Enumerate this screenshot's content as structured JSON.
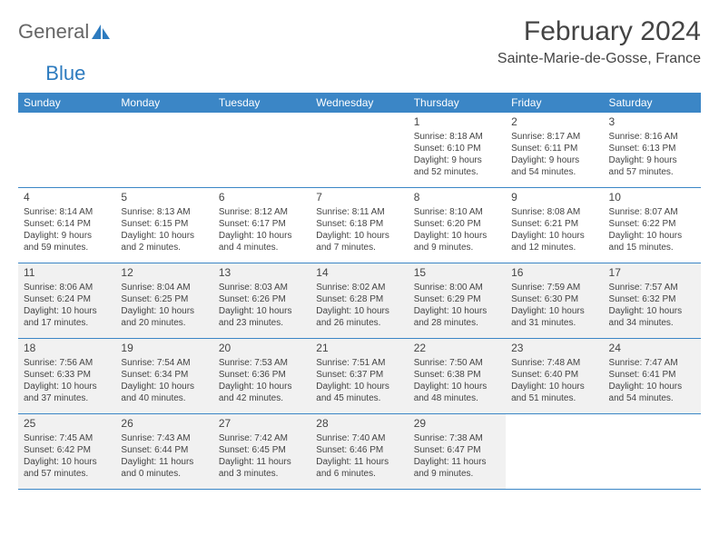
{
  "logo": {
    "text1": "General",
    "text2": "Blue"
  },
  "title": "February 2024",
  "location": "Sainte-Marie-de-Gosse, France",
  "colors": {
    "header_bg": "#3b86c6",
    "header_text": "#ffffff",
    "shaded_bg": "#f1f1f1",
    "text": "#444444",
    "logo_gray": "#666666",
    "logo_blue": "#2d7bbf",
    "border": "#3b86c6"
  },
  "weekdays": [
    "Sunday",
    "Monday",
    "Tuesday",
    "Wednesday",
    "Thursday",
    "Friday",
    "Saturday"
  ],
  "weeks": [
    [
      {
        "day": "",
        "sunrise": "",
        "sunset": "",
        "daylight1": "",
        "daylight2": "",
        "shaded": false
      },
      {
        "day": "",
        "sunrise": "",
        "sunset": "",
        "daylight1": "",
        "daylight2": "",
        "shaded": false
      },
      {
        "day": "",
        "sunrise": "",
        "sunset": "",
        "daylight1": "",
        "daylight2": "",
        "shaded": false
      },
      {
        "day": "",
        "sunrise": "",
        "sunset": "",
        "daylight1": "",
        "daylight2": "",
        "shaded": false
      },
      {
        "day": "1",
        "sunrise": "Sunrise: 8:18 AM",
        "sunset": "Sunset: 6:10 PM",
        "daylight1": "Daylight: 9 hours",
        "daylight2": "and 52 minutes.",
        "shaded": false
      },
      {
        "day": "2",
        "sunrise": "Sunrise: 8:17 AM",
        "sunset": "Sunset: 6:11 PM",
        "daylight1": "Daylight: 9 hours",
        "daylight2": "and 54 minutes.",
        "shaded": false
      },
      {
        "day": "3",
        "sunrise": "Sunrise: 8:16 AM",
        "sunset": "Sunset: 6:13 PM",
        "daylight1": "Daylight: 9 hours",
        "daylight2": "and 57 minutes.",
        "shaded": false
      }
    ],
    [
      {
        "day": "4",
        "sunrise": "Sunrise: 8:14 AM",
        "sunset": "Sunset: 6:14 PM",
        "daylight1": "Daylight: 9 hours",
        "daylight2": "and 59 minutes.",
        "shaded": false
      },
      {
        "day": "5",
        "sunrise": "Sunrise: 8:13 AM",
        "sunset": "Sunset: 6:15 PM",
        "daylight1": "Daylight: 10 hours",
        "daylight2": "and 2 minutes.",
        "shaded": false
      },
      {
        "day": "6",
        "sunrise": "Sunrise: 8:12 AM",
        "sunset": "Sunset: 6:17 PM",
        "daylight1": "Daylight: 10 hours",
        "daylight2": "and 4 minutes.",
        "shaded": false
      },
      {
        "day": "7",
        "sunrise": "Sunrise: 8:11 AM",
        "sunset": "Sunset: 6:18 PM",
        "daylight1": "Daylight: 10 hours",
        "daylight2": "and 7 minutes.",
        "shaded": false
      },
      {
        "day": "8",
        "sunrise": "Sunrise: 8:10 AM",
        "sunset": "Sunset: 6:20 PM",
        "daylight1": "Daylight: 10 hours",
        "daylight2": "and 9 minutes.",
        "shaded": false
      },
      {
        "day": "9",
        "sunrise": "Sunrise: 8:08 AM",
        "sunset": "Sunset: 6:21 PM",
        "daylight1": "Daylight: 10 hours",
        "daylight2": "and 12 minutes.",
        "shaded": false
      },
      {
        "day": "10",
        "sunrise": "Sunrise: 8:07 AM",
        "sunset": "Sunset: 6:22 PM",
        "daylight1": "Daylight: 10 hours",
        "daylight2": "and 15 minutes.",
        "shaded": false
      }
    ],
    [
      {
        "day": "11",
        "sunrise": "Sunrise: 8:06 AM",
        "sunset": "Sunset: 6:24 PM",
        "daylight1": "Daylight: 10 hours",
        "daylight2": "and 17 minutes.",
        "shaded": true
      },
      {
        "day": "12",
        "sunrise": "Sunrise: 8:04 AM",
        "sunset": "Sunset: 6:25 PM",
        "daylight1": "Daylight: 10 hours",
        "daylight2": "and 20 minutes.",
        "shaded": true
      },
      {
        "day": "13",
        "sunrise": "Sunrise: 8:03 AM",
        "sunset": "Sunset: 6:26 PM",
        "daylight1": "Daylight: 10 hours",
        "daylight2": "and 23 minutes.",
        "shaded": true
      },
      {
        "day": "14",
        "sunrise": "Sunrise: 8:02 AM",
        "sunset": "Sunset: 6:28 PM",
        "daylight1": "Daylight: 10 hours",
        "daylight2": "and 26 minutes.",
        "shaded": true
      },
      {
        "day": "15",
        "sunrise": "Sunrise: 8:00 AM",
        "sunset": "Sunset: 6:29 PM",
        "daylight1": "Daylight: 10 hours",
        "daylight2": "and 28 minutes.",
        "shaded": true
      },
      {
        "day": "16",
        "sunrise": "Sunrise: 7:59 AM",
        "sunset": "Sunset: 6:30 PM",
        "daylight1": "Daylight: 10 hours",
        "daylight2": "and 31 minutes.",
        "shaded": true
      },
      {
        "day": "17",
        "sunrise": "Sunrise: 7:57 AM",
        "sunset": "Sunset: 6:32 PM",
        "daylight1": "Daylight: 10 hours",
        "daylight2": "and 34 minutes.",
        "shaded": true
      }
    ],
    [
      {
        "day": "18",
        "sunrise": "Sunrise: 7:56 AM",
        "sunset": "Sunset: 6:33 PM",
        "daylight1": "Daylight: 10 hours",
        "daylight2": "and 37 minutes.",
        "shaded": true
      },
      {
        "day": "19",
        "sunrise": "Sunrise: 7:54 AM",
        "sunset": "Sunset: 6:34 PM",
        "daylight1": "Daylight: 10 hours",
        "daylight2": "and 40 minutes.",
        "shaded": true
      },
      {
        "day": "20",
        "sunrise": "Sunrise: 7:53 AM",
        "sunset": "Sunset: 6:36 PM",
        "daylight1": "Daylight: 10 hours",
        "daylight2": "and 42 minutes.",
        "shaded": true
      },
      {
        "day": "21",
        "sunrise": "Sunrise: 7:51 AM",
        "sunset": "Sunset: 6:37 PM",
        "daylight1": "Daylight: 10 hours",
        "daylight2": "and 45 minutes.",
        "shaded": true
      },
      {
        "day": "22",
        "sunrise": "Sunrise: 7:50 AM",
        "sunset": "Sunset: 6:38 PM",
        "daylight1": "Daylight: 10 hours",
        "daylight2": "and 48 minutes.",
        "shaded": true
      },
      {
        "day": "23",
        "sunrise": "Sunrise: 7:48 AM",
        "sunset": "Sunset: 6:40 PM",
        "daylight1": "Daylight: 10 hours",
        "daylight2": "and 51 minutes.",
        "shaded": true
      },
      {
        "day": "24",
        "sunrise": "Sunrise: 7:47 AM",
        "sunset": "Sunset: 6:41 PM",
        "daylight1": "Daylight: 10 hours",
        "daylight2": "and 54 minutes.",
        "shaded": true
      }
    ],
    [
      {
        "day": "25",
        "sunrise": "Sunrise: 7:45 AM",
        "sunset": "Sunset: 6:42 PM",
        "daylight1": "Daylight: 10 hours",
        "daylight2": "and 57 minutes.",
        "shaded": true
      },
      {
        "day": "26",
        "sunrise": "Sunrise: 7:43 AM",
        "sunset": "Sunset: 6:44 PM",
        "daylight1": "Daylight: 11 hours",
        "daylight2": "and 0 minutes.",
        "shaded": true
      },
      {
        "day": "27",
        "sunrise": "Sunrise: 7:42 AM",
        "sunset": "Sunset: 6:45 PM",
        "daylight1": "Daylight: 11 hours",
        "daylight2": "and 3 minutes.",
        "shaded": true
      },
      {
        "day": "28",
        "sunrise": "Sunrise: 7:40 AM",
        "sunset": "Sunset: 6:46 PM",
        "daylight1": "Daylight: 11 hours",
        "daylight2": "and 6 minutes.",
        "shaded": true
      },
      {
        "day": "29",
        "sunrise": "Sunrise: 7:38 AM",
        "sunset": "Sunset: 6:47 PM",
        "daylight1": "Daylight: 11 hours",
        "daylight2": "and 9 minutes.",
        "shaded": true
      },
      {
        "day": "",
        "sunrise": "",
        "sunset": "",
        "daylight1": "",
        "daylight2": "",
        "shaded": false
      },
      {
        "day": "",
        "sunrise": "",
        "sunset": "",
        "daylight1": "",
        "daylight2": "",
        "shaded": false
      }
    ]
  ]
}
